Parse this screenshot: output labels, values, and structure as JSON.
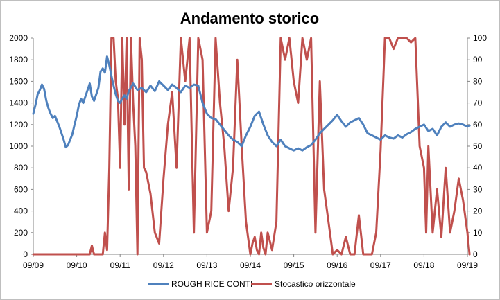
{
  "chart_data": {
    "type": "line",
    "title": "Andamento storico",
    "xlabel": "",
    "ylabel": "",
    "y2label": "",
    "x_ticks": [
      "09/09",
      "09/10",
      "09/11",
      "09/12",
      "09/13",
      "09/14",
      "09/15",
      "09/16",
      "09/17",
      "09/18",
      "09/19"
    ],
    "ylim": [
      0,
      2000
    ],
    "y_ticks": [
      0,
      200,
      400,
      600,
      800,
      1000,
      1200,
      1400,
      1600,
      1800,
      2000
    ],
    "y2lim": [
      0,
      100
    ],
    "y2_ticks": [
      0,
      10,
      20,
      30,
      40,
      50,
      60,
      70,
      80,
      90,
      100
    ],
    "grid": false,
    "legend": "bottom",
    "series": [
      {
        "name": "ROUGH RICE CONTI",
        "axis": "left",
        "color": "#4f81bd",
        "x": [
          0,
          0.05,
          0.1,
          0.15,
          0.2,
          0.25,
          0.3,
          0.35,
          0.4,
          0.45,
          0.5,
          0.55,
          0.6,
          0.65,
          0.7,
          0.75,
          0.8,
          0.85,
          0.9,
          0.95,
          1.0,
          1.05,
          1.1,
          1.15,
          1.2,
          1.25,
          1.3,
          1.35,
          1.4,
          1.45,
          1.5,
          1.55,
          1.6,
          1.65,
          1.7,
          1.75,
          1.8,
          1.85,
          1.9,
          1.95,
          2.0,
          2.05,
          2.1,
          2.15,
          2.2,
          2.3,
          2.4,
          2.5,
          2.6,
          2.7,
          2.8,
          2.9,
          3.0,
          3.1,
          3.2,
          3.3,
          3.4,
          3.5,
          3.6,
          3.7,
          3.8,
          3.9,
          4.0,
          4.1,
          4.2,
          4.3,
          4.4,
          4.5,
          4.6,
          4.7,
          4.8,
          4.9,
          5.0,
          5.1,
          5.2,
          5.3,
          5.4,
          5.5,
          5.6,
          5.7,
          5.8,
          5.9,
          6.0,
          6.1,
          6.2,
          6.3,
          6.4,
          6.5,
          6.6,
          6.7,
          6.8,
          6.9,
          7.0,
          7.1,
          7.2,
          7.3,
          7.4,
          7.5,
          7.6,
          7.7,
          7.8,
          7.9,
          8.0,
          8.1,
          8.2,
          8.3,
          8.4,
          8.5,
          8.6,
          8.7,
          8.8,
          8.9,
          9.0,
          9.1,
          9.2,
          9.3,
          9.4,
          9.5,
          9.6,
          9.7,
          9.8,
          9.9,
          10.0,
          10.05
        ],
        "values": [
          1300,
          1380,
          1480,
          1520,
          1570,
          1530,
          1420,
          1350,
          1300,
          1260,
          1280,
          1230,
          1180,
          1120,
          1060,
          990,
          1010,
          1060,
          1110,
          1200,
          1280,
          1380,
          1440,
          1400,
          1460,
          1520,
          1580,
          1460,
          1420,
          1480,
          1540,
          1690,
          1720,
          1680,
          1830,
          1750,
          1650,
          1560,
          1480,
          1420,
          1400,
          1440,
          1470,
          1440,
          1510,
          1580,
          1520,
          1540,
          1500,
          1560,
          1510,
          1600,
          1560,
          1520,
          1570,
          1540,
          1500,
          1560,
          1540,
          1570,
          1560,
          1400,
          1300,
          1260,
          1250,
          1200,
          1150,
          1100,
          1060,
          1040,
          1000,
          1100,
          1180,
          1280,
          1320,
          1200,
          1100,
          1040,
          1000,
          1060,
          1000,
          980,
          960,
          980,
          960,
          990,
          1010,
          1060,
          1120,
          1160,
          1200,
          1240,
          1290,
          1230,
          1180,
          1220,
          1240,
          1260,
          1200,
          1120,
          1100,
          1080,
          1060,
          1100,
          1080,
          1070,
          1100,
          1080,
          1110,
          1130,
          1160,
          1180,
          1200,
          1140,
          1160,
          1100,
          1180,
          1220,
          1180,
          1200,
          1210,
          1200,
          1180,
          1190
        ]
      },
      {
        "name": "Stocastico orizzontale",
        "axis": "right",
        "color": "#c0504d",
        "x": [
          0,
          0.5,
          1.0,
          1.3,
          1.35,
          1.4,
          1.6,
          1.65,
          1.7,
          1.75,
          1.8,
          1.85,
          1.9,
          1.95,
          2.0,
          2.05,
          2.1,
          2.15,
          2.2,
          2.25,
          2.3,
          2.35,
          2.4,
          2.45,
          2.5,
          2.55,
          2.6,
          2.7,
          2.8,
          2.9,
          3.0,
          3.1,
          3.2,
          3.3,
          3.4,
          3.5,
          3.6,
          3.7,
          3.8,
          3.9,
          4.0,
          4.1,
          4.2,
          4.3,
          4.4,
          4.5,
          4.6,
          4.7,
          4.8,
          4.9,
          5.0,
          5.05,
          5.1,
          5.15,
          5.2,
          5.25,
          5.3,
          5.35,
          5.4,
          5.5,
          5.6,
          5.7,
          5.8,
          5.9,
          6.0,
          6.1,
          6.2,
          6.3,
          6.4,
          6.5,
          6.6,
          6.7,
          6.8,
          6.9,
          7.0,
          7.1,
          7.2,
          7.3,
          7.4,
          7.5,
          7.6,
          7.7,
          7.8,
          7.9,
          8.0,
          8.1,
          8.2,
          8.3,
          8.4,
          8.5,
          8.6,
          8.7,
          8.8,
          8.9,
          9.0,
          9.05,
          9.1,
          9.15,
          9.2,
          9.3,
          9.4,
          9.5,
          9.6,
          9.7,
          9.8,
          9.9,
          10.0,
          10.05
        ],
        "values": [
          0,
          0,
          0,
          0,
          4,
          0,
          0,
          10,
          2,
          40,
          100,
          100,
          80,
          72,
          40,
          100,
          60,
          100,
          30,
          100,
          70,
          50,
          0,
          100,
          90,
          40,
          38,
          28,
          10,
          5,
          35,
          60,
          75,
          40,
          100,
          80,
          100,
          10,
          100,
          90,
          10,
          20,
          100,
          70,
          50,
          20,
          40,
          90,
          50,
          15,
          0,
          5,
          8,
          2,
          0,
          10,
          3,
          0,
          10,
          2,
          15,
          100,
          90,
          100,
          80,
          70,
          100,
          90,
          100,
          10,
          80,
          30,
          15,
          0,
          2,
          0,
          8,
          0,
          0,
          18,
          0,
          0,
          0,
          10,
          48,
          100,
          100,
          95,
          100,
          100,
          100,
          98,
          100,
          50,
          40,
          10,
          50,
          30,
          10,
          30,
          8,
          40,
          10,
          20,
          35,
          25,
          10,
          0
        ]
      }
    ]
  }
}
